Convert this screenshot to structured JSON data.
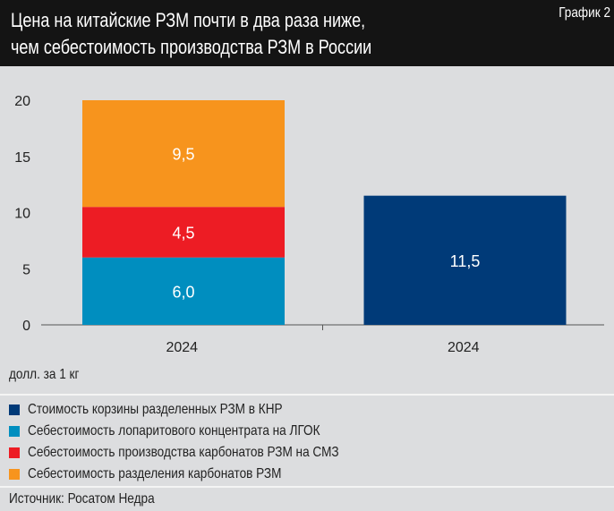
{
  "header": {
    "title_line1": "Цена на китайские РЗМ почти в два раза ниже,",
    "title_line2": "чем себестоимость производства РЗМ в России",
    "chart_label": "График 2"
  },
  "chart_data": {
    "type": "bar",
    "stacked": true,
    "categories": [
      "2024",
      "2024"
    ],
    "series": [
      {
        "name": "Стоимость корзины разделенных РЗМ в КНР",
        "color": "#003a78",
        "values": [
          null,
          11.5
        ],
        "labels": [
          "",
          "11,5"
        ]
      },
      {
        "name": "Себестоимость лопаритового концентрата на ЛГОК",
        "color": "#008ebf",
        "values": [
          6.0,
          null
        ],
        "labels": [
          "6,0",
          ""
        ]
      },
      {
        "name": "Себестоимость производства карбонатов РЗМ на СМЗ",
        "color": "#ed1c24",
        "values": [
          4.5,
          null
        ],
        "labels": [
          "4,5",
          ""
        ]
      },
      {
        "name": "Себестоимость разделения карбонатов РЗМ",
        "color": "#f7941d",
        "values": [
          9.5,
          null
        ],
        "labels": [
          "9,5",
          ""
        ]
      }
    ],
    "yticks": [
      "0",
      "5",
      "10",
      "15",
      "20"
    ],
    "ylim": [
      0,
      20
    ],
    "grid": false,
    "ylabel": "долл. за 1 кг",
    "legend": "bottom"
  },
  "source": "Источник: Росатом Недра"
}
